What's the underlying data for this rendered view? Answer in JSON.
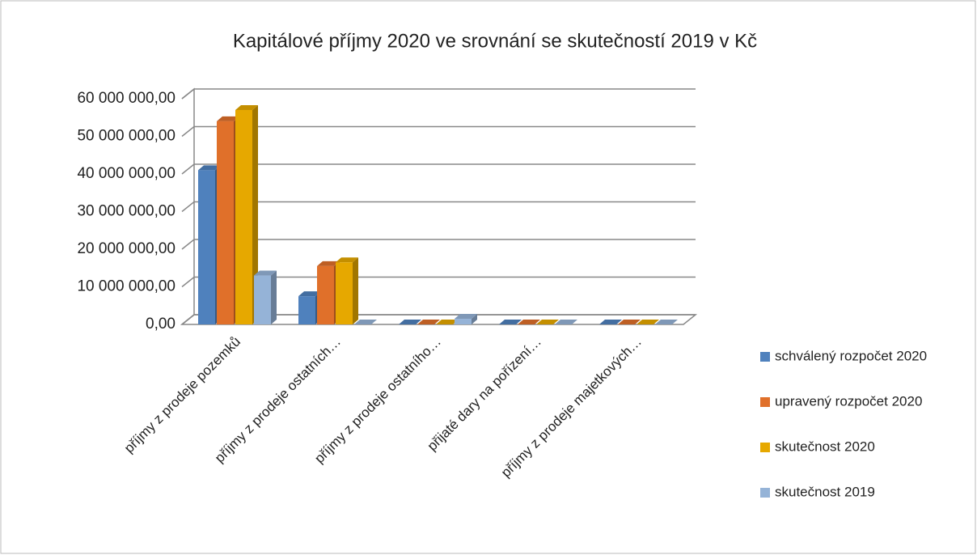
{
  "chart_data": {
    "type": "bar3d",
    "title": "Kapitálové příjmy 2020 ve srovnání se skutečností 2019 v Kč",
    "categories": [
      "příjmy z prodeje pozemků",
      "příjmy z prodeje ostatních…",
      "příjmy z prodeje ostatního…",
      "přijaté dary na pořízení…",
      "příjmy z prodeje majetkových…"
    ],
    "series": [
      {
        "name": "schválený rozpočet 2020",
        "color": "#4f81bd",
        "values": [
          41000000,
          7500000,
          0,
          0,
          0
        ]
      },
      {
        "name": "upravený rozpočet 2020",
        "color": "#e0702a",
        "values": [
          54000000,
          15500000,
          0,
          0,
          0
        ]
      },
      {
        "name": "skutečnost 2020",
        "color": "#e6a800",
        "values": [
          57000000,
          16500000,
          0,
          0,
          0
        ]
      },
      {
        "name": "skutečnost 2019",
        "color": "#95b3d7",
        "values": [
          13000000,
          0,
          1500000,
          0,
          0
        ]
      }
    ],
    "ylim": [
      0,
      60000000
    ],
    "yticks": [
      {
        "value": 0,
        "label": "0,00"
      },
      {
        "value": 10000000,
        "label": "10 000 000,00"
      },
      {
        "value": 20000000,
        "label": "20 000 000,00"
      },
      {
        "value": 30000000,
        "label": "30 000 000,00"
      },
      {
        "value": 40000000,
        "label": "40 000 000,00"
      },
      {
        "value": 50000000,
        "label": "50 000 000,00"
      },
      {
        "value": 60000000,
        "label": "60 000 000,00"
      }
    ],
    "grid": true,
    "legend": "right"
  }
}
